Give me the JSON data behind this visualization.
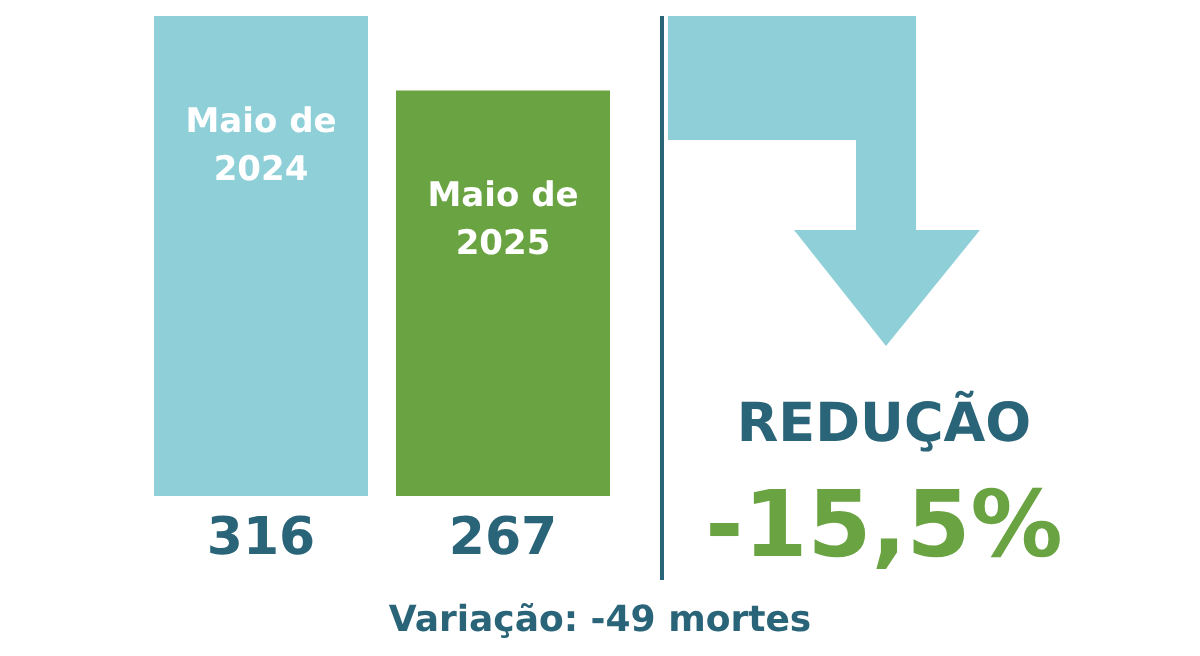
{
  "chart_data": {
    "type": "bar",
    "categories": [
      "Maio de\n2024",
      "Maio de\n2025"
    ],
    "values": [
      316,
      267
    ],
    "colors": [
      "#8fd0d8",
      "#6aa341"
    ],
    "data_labels": true,
    "annotations": [
      "REDUÇÃO",
      "-15,5%",
      "Variação: -49 mortes"
    ]
  }
}
